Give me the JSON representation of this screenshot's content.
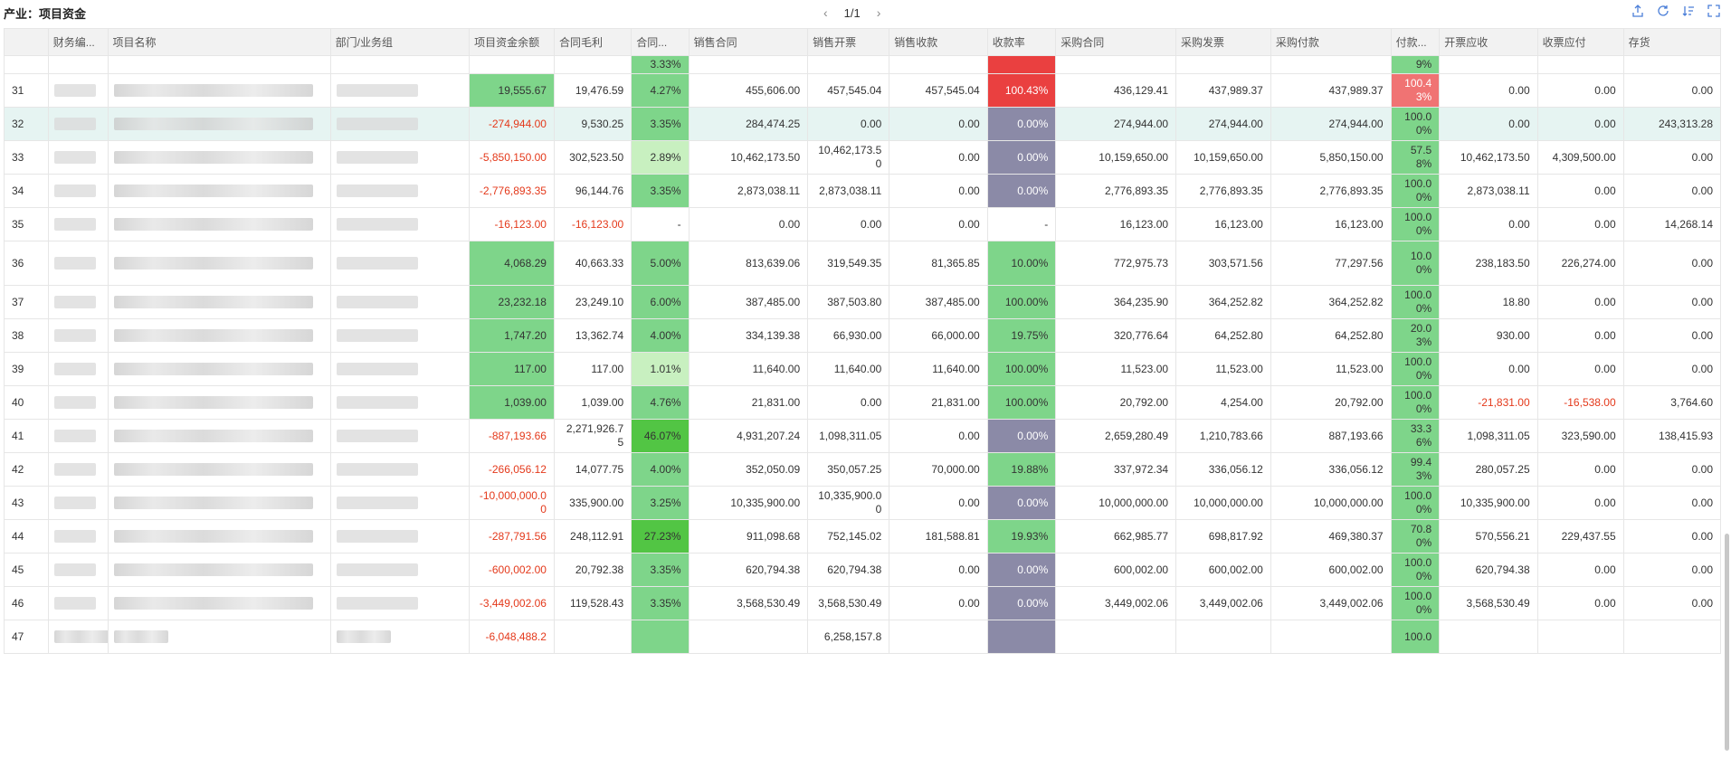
{
  "title": "产业：项目资金",
  "pager": {
    "current": "1/1"
  },
  "columns": [
    "财务编...",
    "项目名称",
    "部门/业务组",
    "项目资金余额",
    "合同毛利",
    "合同...",
    "销售合同",
    "销售开票",
    "销售收款",
    "收款率",
    "采购合同",
    "采购发票",
    "采购付款",
    "付款...",
    "开票应收",
    "收票应付",
    "存货"
  ],
  "rows": [
    [
      "31",
      "19,555.67",
      "19,476.59",
      "4.27%",
      "455,606.00",
      "457,545.04",
      "457,545.04",
      "100.43%",
      "436,129.41",
      "437,989.37",
      "437,989.37",
      "100.43%",
      "0.00",
      "0.00",
      "0.00"
    ],
    [
      "32",
      "-274,944.00",
      "9,530.25",
      "3.35%",
      "284,474.25",
      "0.00",
      "0.00",
      "0.00%",
      "274,944.00",
      "274,944.00",
      "274,944.00",
      "100.00%",
      "0.00",
      "0.00",
      "243,313.28"
    ],
    [
      "33",
      "-5,850,150.00",
      "302,523.50",
      "2.89%",
      "10,462,173.50",
      "10,462,173.50",
      "0.00",
      "0.00%",
      "10,159,650.00",
      "10,159,650.00",
      "5,850,150.00",
      "57.58%",
      "10,462,173.50",
      "4,309,500.00",
      "0.00"
    ],
    [
      "34",
      "-2,776,893.35",
      "96,144.76",
      "3.35%",
      "2,873,038.11",
      "2,873,038.11",
      "0.00",
      "0.00%",
      "2,776,893.35",
      "2,776,893.35",
      "2,776,893.35",
      "100.00%",
      "2,873,038.11",
      "0.00",
      "0.00"
    ],
    [
      "35",
      "-16,123.00",
      "-16,123.00",
      "-",
      "0.00",
      "0.00",
      "0.00",
      "-",
      "16,123.00",
      "16,123.00",
      "16,123.00",
      "100.00%",
      "0.00",
      "0.00",
      "14,268.14"
    ],
    [
      "36",
      "4,068.29",
      "40,663.33",
      "5.00%",
      "813,639.06",
      "319,549.35",
      "81,365.85",
      "10.00%",
      "772,975.73",
      "303,571.56",
      "77,297.56",
      "10.00%",
      "238,183.50",
      "226,274.00",
      "0.00"
    ],
    [
      "37",
      "23,232.18",
      "23,249.10",
      "6.00%",
      "387,485.00",
      "387,503.80",
      "387,485.00",
      "100.00%",
      "364,235.90",
      "364,252.82",
      "364,252.82",
      "100.00%",
      "18.80",
      "0.00",
      "0.00"
    ],
    [
      "38",
      "1,747.20",
      "13,362.74",
      "4.00%",
      "334,139.38",
      "66,930.00",
      "66,000.00",
      "19.75%",
      "320,776.64",
      "64,252.80",
      "64,252.80",
      "20.03%",
      "930.00",
      "0.00",
      "0.00"
    ],
    [
      "39",
      "117.00",
      "117.00",
      "1.01%",
      "11,640.00",
      "11,640.00",
      "11,640.00",
      "100.00%",
      "11,523.00",
      "11,523.00",
      "11,523.00",
      "100.00%",
      "0.00",
      "0.00",
      "0.00"
    ],
    [
      "40",
      "1,039.00",
      "1,039.00",
      "4.76%",
      "21,831.00",
      "0.00",
      "21,831.00",
      "100.00%",
      "20,792.00",
      "4,254.00",
      "20,792.00",
      "100.00%",
      "-21,831.00",
      "-16,538.00",
      "3,764.60"
    ],
    [
      "41",
      "-887,193.66",
      "2,271,926.75",
      "46.07%",
      "4,931,207.24",
      "1,098,311.05",
      "0.00",
      "0.00%",
      "2,659,280.49",
      "1,210,783.66",
      "887,193.66",
      "33.36%",
      "1,098,311.05",
      "323,590.00",
      "138,415.93"
    ],
    [
      "42",
      "-266,056.12",
      "14,077.75",
      "4.00%",
      "352,050.09",
      "350,057.25",
      "70,000.00",
      "19.88%",
      "337,972.34",
      "336,056.12",
      "336,056.12",
      "99.43%",
      "280,057.25",
      "0.00",
      "0.00"
    ],
    [
      "43",
      "-10,000,000.00",
      "335,900.00",
      "3.25%",
      "10,335,900.00",
      "10,335,900.00",
      "0.00",
      "0.00%",
      "10,000,000.00",
      "10,000,000.00",
      "10,000,000.00",
      "100.00%",
      "10,335,900.00",
      "0.00",
      "0.00"
    ],
    [
      "44",
      "-287,791.56",
      "248,112.91",
      "27.23%",
      "911,098.68",
      "752,145.02",
      "181,588.81",
      "19.93%",
      "662,985.77",
      "698,817.92",
      "469,380.37",
      "70.80%",
      "570,556.21",
      "229,437.55",
      "0.00"
    ],
    [
      "45",
      "-600,002.00",
      "20,792.38",
      "3.35%",
      "620,794.38",
      "620,794.38",
      "0.00",
      "0.00%",
      "600,002.00",
      "600,002.00",
      "600,002.00",
      "100.00%",
      "620,794.38",
      "0.00",
      "0.00"
    ],
    [
      "46",
      "-3,449,002.06",
      "119,528.43",
      "3.35%",
      "3,568,530.49",
      "3,568,530.49",
      "0.00",
      "0.00%",
      "3,449,002.06",
      "3,449,002.06",
      "3,449,002.06",
      "100.00%",
      "3,568,530.49",
      "0.00",
      "0.00"
    ]
  ],
  "partial_top": {
    "margin": "3.33%",
    "pay_rate": "9%"
  },
  "partial_bottom": {
    "index": "47",
    "balance": "-6,048,488.2",
    "sales_invoice": "6,258,157.8",
    "pay_rate": "100.0"
  },
  "colors": {
    "header_bg": "#f2f2f2",
    "selected_row": "#e6f4f2",
    "negative": "#e4391b",
    "green": "#7ed58a",
    "gray": "#8b8aa7",
    "red": "#ea4040"
  },
  "icons": [
    "export-icon",
    "refresh-icon",
    "sort-icon",
    "fullscreen-icon"
  ]
}
